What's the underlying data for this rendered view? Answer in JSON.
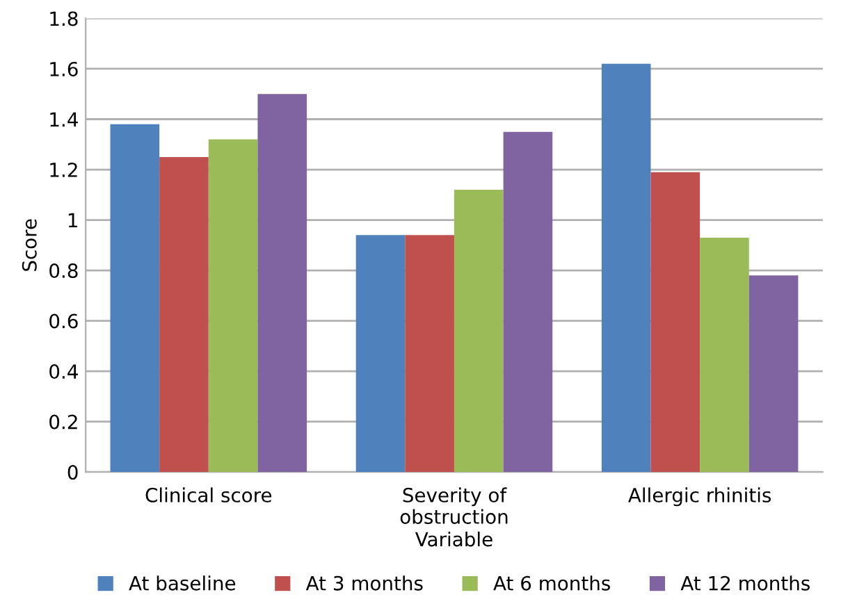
{
  "chart_data": {
    "type": "bar",
    "xlabel": "Variable",
    "ylabel": "Score",
    "categories": [
      "Clinical score",
      "Severity of\nobstruction",
      "Allergic rhinitis"
    ],
    "series": [
      {
        "name": "At baseline",
        "color": "#4f81bd",
        "values": [
          1.38,
          0.94,
          1.62
        ]
      },
      {
        "name": "At 3 months",
        "color": "#c0504d",
        "values": [
          1.25,
          0.94,
          1.19
        ]
      },
      {
        "name": "At 6 months",
        "color": "#9bbb59",
        "values": [
          1.32,
          1.12,
          0.93
        ]
      },
      {
        "name": "At 12 months",
        "color": "#8064a2",
        "values": [
          1.5,
          1.35,
          0.78
        ]
      }
    ],
    "ylim": [
      0,
      1.8
    ],
    "yticks": [
      0,
      0.2,
      0.4,
      0.6,
      0.8,
      1,
      1.2,
      1.4,
      1.6,
      1.8
    ],
    "grid": "y",
    "legend": "bottom"
  }
}
